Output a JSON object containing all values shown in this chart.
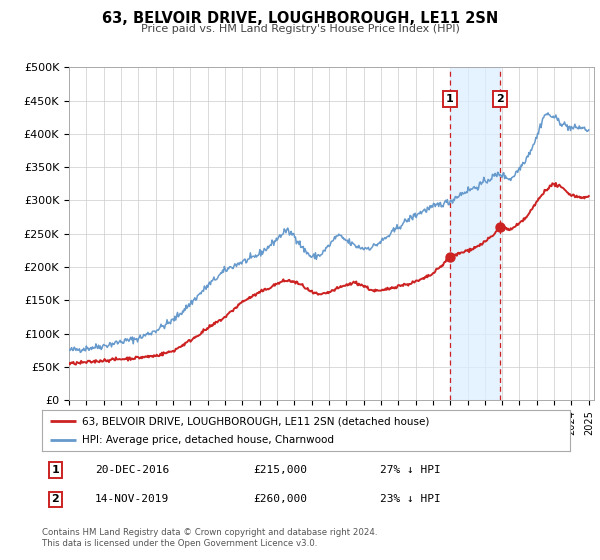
{
  "title": "63, BELVOIR DRIVE, LOUGHBOROUGH, LE11 2SN",
  "subtitle": "Price paid vs. HM Land Registry's House Price Index (HPI)",
  "ylim": [
    0,
    500000
  ],
  "yticks": [
    0,
    50000,
    100000,
    150000,
    200000,
    250000,
    300000,
    350000,
    400000,
    450000,
    500000
  ],
  "ytick_labels": [
    "£0",
    "£50K",
    "£100K",
    "£150K",
    "£200K",
    "£250K",
    "£300K",
    "£350K",
    "£400K",
    "£450K",
    "£500K"
  ],
  "xlim_start": 1995.0,
  "xlim_end": 2025.3,
  "hpi_color": "#6699cc",
  "price_color": "#cc2222",
  "marker1_date": 2016.97,
  "marker1_price": 215000,
  "marker1_label": "1",
  "marker1_text": "20-DEC-2016",
  "marker1_value": "£215,000",
  "marker1_pct": "27% ↓ HPI",
  "marker2_date": 2019.87,
  "marker2_price": 260000,
  "marker2_label": "2",
  "marker2_text": "14-NOV-2019",
  "marker2_value": "£260,000",
  "marker2_pct": "23% ↓ HPI",
  "legend_label1": "63, BELVOIR DRIVE, LOUGHBOROUGH, LE11 2SN (detached house)",
  "legend_label2": "HPI: Average price, detached house, Charnwood",
  "footer1": "Contains HM Land Registry data © Crown copyright and database right 2024.",
  "footer2": "This data is licensed under the Open Government Licence v3.0.",
  "background_color": "#ffffff",
  "plot_bg_color": "#ffffff",
  "grid_color": "#cccccc",
  "shade_color": "#ddeeff",
  "vline_color": "#cc2222",
  "hpi_anchors": [
    [
      1995.0,
      75000
    ],
    [
      1996.0,
      78000
    ],
    [
      1997.0,
      82000
    ],
    [
      1998.0,
      88000
    ],
    [
      1999.0,
      93000
    ],
    [
      2000.0,
      105000
    ],
    [
      2001.0,
      120000
    ],
    [
      2002.0,
      145000
    ],
    [
      2003.0,
      172000
    ],
    [
      2004.0,
      195000
    ],
    [
      2004.5,
      202000
    ],
    [
      2005.0,
      208000
    ],
    [
      2005.5,
      212000
    ],
    [
      2006.0,
      220000
    ],
    [
      2006.5,
      230000
    ],
    [
      2007.0,
      242000
    ],
    [
      2007.5,
      255000
    ],
    [
      2008.0,
      248000
    ],
    [
      2008.5,
      228000
    ],
    [
      2009.0,
      215000
    ],
    [
      2009.5,
      218000
    ],
    [
      2010.0,
      232000
    ],
    [
      2010.5,
      248000
    ],
    [
      2011.0,
      240000
    ],
    [
      2011.5,
      232000
    ],
    [
      2012.0,
      228000
    ],
    [
      2012.5,
      230000
    ],
    [
      2013.0,
      238000
    ],
    [
      2013.5,
      248000
    ],
    [
      2014.0,
      260000
    ],
    [
      2014.5,
      270000
    ],
    [
      2015.0,
      278000
    ],
    [
      2015.5,
      285000
    ],
    [
      2016.0,
      290000
    ],
    [
      2016.5,
      295000
    ],
    [
      2016.97,
      298000
    ],
    [
      2017.5,
      308000
    ],
    [
      2018.0,
      315000
    ],
    [
      2018.5,
      320000
    ],
    [
      2019.0,
      328000
    ],
    [
      2019.5,
      336000
    ],
    [
      2019.87,
      340000
    ],
    [
      2020.0,
      338000
    ],
    [
      2020.5,
      332000
    ],
    [
      2021.0,
      348000
    ],
    [
      2021.5,
      368000
    ],
    [
      2022.0,
      395000
    ],
    [
      2022.3,
      420000
    ],
    [
      2022.5,
      430000
    ],
    [
      2023.0,
      425000
    ],
    [
      2023.5,
      415000
    ],
    [
      2024.0,
      408000
    ],
    [
      2024.5,
      410000
    ],
    [
      2025.0,
      405000
    ]
  ],
  "price_anchors": [
    [
      1995.0,
      55000
    ],
    [
      1996.0,
      57000
    ],
    [
      1997.0,
      60000
    ],
    [
      1998.0,
      62000
    ],
    [
      1999.0,
      64000
    ],
    [
      2000.0,
      67000
    ],
    [
      2001.0,
      74000
    ],
    [
      2002.0,
      90000
    ],
    [
      2003.0,
      108000
    ],
    [
      2004.0,
      125000
    ],
    [
      2005.0,
      148000
    ],
    [
      2005.5,
      155000
    ],
    [
      2006.0,
      162000
    ],
    [
      2006.5,
      168000
    ],
    [
      2007.0,
      175000
    ],
    [
      2007.5,
      180000
    ],
    [
      2008.0,
      178000
    ],
    [
      2008.5,
      172000
    ],
    [
      2009.0,
      162000
    ],
    [
      2009.5,
      158000
    ],
    [
      2010.0,
      162000
    ],
    [
      2010.5,
      168000
    ],
    [
      2011.0,
      173000
    ],
    [
      2011.5,
      177000
    ],
    [
      2012.0,
      172000
    ],
    [
      2012.5,
      165000
    ],
    [
      2013.0,
      164000
    ],
    [
      2013.5,
      168000
    ],
    [
      2014.0,
      172000
    ],
    [
      2014.5,
      174000
    ],
    [
      2015.0,
      178000
    ],
    [
      2015.5,
      183000
    ],
    [
      2016.0,
      190000
    ],
    [
      2016.5,
      202000
    ],
    [
      2016.97,
      215000
    ],
    [
      2017.5,
      220000
    ],
    [
      2018.0,
      225000
    ],
    [
      2018.5,
      230000
    ],
    [
      2019.0,
      238000
    ],
    [
      2019.5,
      248000
    ],
    [
      2019.87,
      260000
    ],
    [
      2020.5,
      256000
    ],
    [
      2021.0,
      265000
    ],
    [
      2021.5,
      278000
    ],
    [
      2022.0,
      298000
    ],
    [
      2022.5,
      316000
    ],
    [
      2023.0,
      325000
    ],
    [
      2023.5,
      318000
    ],
    [
      2024.0,
      308000
    ],
    [
      2024.5,
      305000
    ],
    [
      2025.0,
      305000
    ]
  ]
}
